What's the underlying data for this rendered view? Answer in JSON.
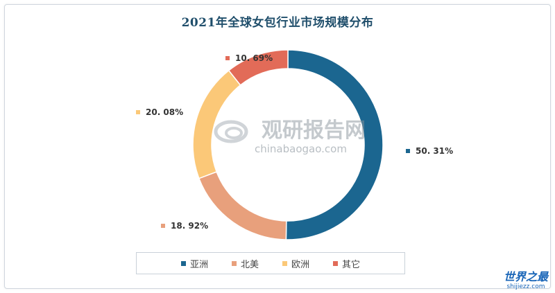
{
  "chart_data": {
    "type": "pie",
    "donut": true,
    "title": "2021年全球女包行业市场规模分布",
    "series": [
      {
        "name": "亚洲",
        "value": 50.31,
        "label": "50. 31%",
        "color": "#1b6690"
      },
      {
        "name": "北美",
        "value": 18.92,
        "label": "18. 92%",
        "color": "#e8a07c"
      },
      {
        "name": "欧洲",
        "value": 20.08,
        "label": "20. 08%",
        "color": "#fbc878"
      },
      {
        "name": "其它",
        "value": 10.69,
        "label": "10. 69%",
        "color": "#e26b58"
      }
    ],
    "legend": {
      "placement": "bottom"
    }
  },
  "watermark": {
    "brand": "观研报告网",
    "url": "chinabaogao.com"
  },
  "corner_logo": {
    "main": "世界之最",
    "sub": "shijiezz.com"
  }
}
